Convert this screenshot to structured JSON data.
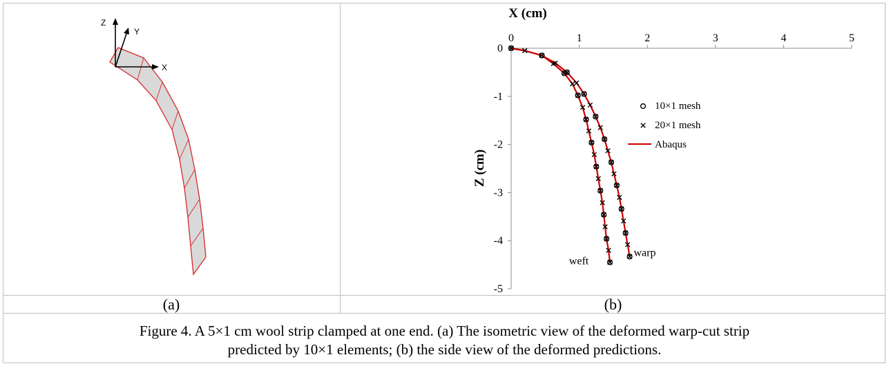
{
  "panel_a": {
    "axes": {
      "x": "X",
      "y": "Y",
      "z": "Z"
    },
    "label": "(a)",
    "colors": {
      "outline": "#d62728",
      "fill": "#d9d9d9",
      "axes": "#000000"
    }
  },
  "panel_b": {
    "label": "(b)"
  },
  "caption": {
    "line1": "Figure 4.  A 5×1 cm wool strip clamped at one end. (a) The isometric view of the deformed warp-cut strip",
    "line2": "predicted by 10×1 elements; (b) the side view of the deformed predictions."
  },
  "chart_data": {
    "type": "scatter",
    "xlabel": "X (cm)",
    "ylabel": "Z (cm)",
    "xlim": [
      0,
      5
    ],
    "ylim": [
      -5,
      0
    ],
    "xticks": [
      "0",
      "1",
      "2",
      "3",
      "4",
      "5"
    ],
    "yticks": [
      "0",
      "-1",
      "-2",
      "-3",
      "-4",
      "-5"
    ],
    "x_axis_position": "top",
    "grid": false,
    "legend_position": "right",
    "legend": [
      {
        "label": "10×1 mesh",
        "marker": "circle"
      },
      {
        "label": "20×1 mesh",
        "marker": "x"
      },
      {
        "label": "Abaqus",
        "marker": "line",
        "color": "#cc0000"
      }
    ],
    "annotations": [
      {
        "text": "weft",
        "x": 0.85,
        "y": -4.42
      },
      {
        "text": "warp",
        "x": 1.8,
        "y": -4.25
      }
    ],
    "series": [
      {
        "name": "10×1 mesh",
        "curve": "weft",
        "marker": "circle",
        "points": [
          [
            0.0,
            0.0
          ],
          [
            0.45,
            -0.15
          ],
          [
            0.78,
            -0.52
          ],
          [
            0.98,
            -0.98
          ],
          [
            1.1,
            -1.48
          ],
          [
            1.18,
            -1.96
          ],
          [
            1.25,
            -2.46
          ],
          [
            1.31,
            -2.96
          ],
          [
            1.36,
            -3.46
          ],
          [
            1.4,
            -3.96
          ],
          [
            1.45,
            -4.45
          ]
        ]
      },
      {
        "name": "10×1 mesh",
        "curve": "warp",
        "marker": "circle",
        "points": [
          [
            0.45,
            -0.15
          ],
          [
            0.82,
            -0.5
          ],
          [
            1.07,
            -0.95
          ],
          [
            1.24,
            -1.42
          ],
          [
            1.37,
            -1.89
          ],
          [
            1.47,
            -2.37
          ],
          [
            1.55,
            -2.85
          ],
          [
            1.62,
            -3.34
          ],
          [
            1.68,
            -3.84
          ],
          [
            1.74,
            -4.33
          ]
        ]
      },
      {
        "name": "20×1 mesh",
        "curve": "weft",
        "marker": "x",
        "points": [
          [
            0.0,
            0.0
          ],
          [
            0.2,
            -0.05
          ],
          [
            0.45,
            -0.15
          ],
          [
            0.62,
            -0.32
          ],
          [
            0.78,
            -0.52
          ],
          [
            0.9,
            -0.74
          ],
          [
            0.98,
            -0.98
          ],
          [
            1.05,
            -1.23
          ],
          [
            1.1,
            -1.48
          ],
          [
            1.14,
            -1.72
          ],
          [
            1.18,
            -1.96
          ],
          [
            1.22,
            -2.21
          ],
          [
            1.25,
            -2.46
          ],
          [
            1.28,
            -2.71
          ],
          [
            1.31,
            -2.96
          ],
          [
            1.34,
            -3.21
          ],
          [
            1.36,
            -3.46
          ],
          [
            1.38,
            -3.71
          ],
          [
            1.4,
            -3.96
          ],
          [
            1.43,
            -4.2
          ],
          [
            1.45,
            -4.45
          ]
        ]
      },
      {
        "name": "20×1 mesh",
        "curve": "warp",
        "marker": "x",
        "points": [
          [
            0.0,
            0.0
          ],
          [
            0.2,
            -0.05
          ],
          [
            0.45,
            -0.15
          ],
          [
            0.65,
            -0.31
          ],
          [
            0.82,
            -0.5
          ],
          [
            0.96,
            -0.72
          ],
          [
            1.07,
            -0.95
          ],
          [
            1.16,
            -1.18
          ],
          [
            1.24,
            -1.42
          ],
          [
            1.31,
            -1.65
          ],
          [
            1.37,
            -1.89
          ],
          [
            1.42,
            -2.13
          ],
          [
            1.47,
            -2.37
          ],
          [
            1.51,
            -2.61
          ],
          [
            1.55,
            -2.85
          ],
          [
            1.59,
            -3.1
          ],
          [
            1.62,
            -3.34
          ],
          [
            1.65,
            -3.59
          ],
          [
            1.68,
            -3.84
          ],
          [
            1.71,
            -4.08
          ],
          [
            1.74,
            -4.33
          ]
        ]
      },
      {
        "name": "Abaqus",
        "curve": "weft",
        "marker": "line",
        "points": [
          [
            0.0,
            0.0
          ],
          [
            0.2,
            -0.05
          ],
          [
            0.45,
            -0.15
          ],
          [
            0.62,
            -0.32
          ],
          [
            0.78,
            -0.52
          ],
          [
            0.9,
            -0.74
          ],
          [
            0.98,
            -0.98
          ],
          [
            1.05,
            -1.23
          ],
          [
            1.1,
            -1.48
          ],
          [
            1.14,
            -1.72
          ],
          [
            1.18,
            -1.96
          ],
          [
            1.22,
            -2.21
          ],
          [
            1.25,
            -2.46
          ],
          [
            1.28,
            -2.71
          ],
          [
            1.31,
            -2.96
          ],
          [
            1.34,
            -3.21
          ],
          [
            1.36,
            -3.46
          ],
          [
            1.38,
            -3.71
          ],
          [
            1.4,
            -3.96
          ],
          [
            1.43,
            -4.2
          ],
          [
            1.45,
            -4.45
          ]
        ]
      },
      {
        "name": "Abaqus",
        "curve": "warp",
        "marker": "line",
        "points": [
          [
            0.0,
            0.0
          ],
          [
            0.2,
            -0.05
          ],
          [
            0.45,
            -0.15
          ],
          [
            0.65,
            -0.31
          ],
          [
            0.82,
            -0.5
          ],
          [
            0.96,
            -0.72
          ],
          [
            1.07,
            -0.95
          ],
          [
            1.16,
            -1.18
          ],
          [
            1.24,
            -1.42
          ],
          [
            1.31,
            -1.65
          ],
          [
            1.37,
            -1.89
          ],
          [
            1.42,
            -2.13
          ],
          [
            1.47,
            -2.37
          ],
          [
            1.51,
            -2.61
          ],
          [
            1.55,
            -2.85
          ],
          [
            1.59,
            -3.1
          ],
          [
            1.62,
            -3.34
          ],
          [
            1.65,
            -3.59
          ],
          [
            1.68,
            -3.84
          ],
          [
            1.71,
            -4.08
          ],
          [
            1.74,
            -4.33
          ]
        ]
      }
    ]
  }
}
